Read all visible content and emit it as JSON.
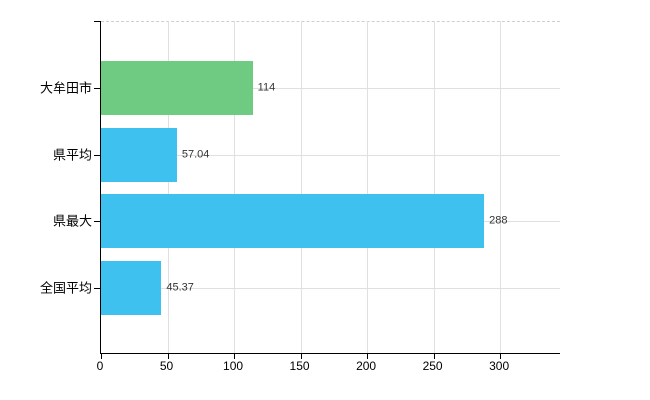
{
  "chart_data": {
    "type": "bar",
    "orientation": "horizontal",
    "title": "",
    "xlabel": "",
    "ylabel": "",
    "categories": [
      "大牟田市",
      "県平均",
      "県最大",
      "全国平均"
    ],
    "values": [
      114,
      57.04,
      288,
      45.37
    ],
    "value_labels": [
      "114",
      "57.04",
      "288",
      "45.37"
    ],
    "x_ticks": [
      0,
      50,
      100,
      150,
      200,
      250,
      300
    ],
    "x_tick_labels": [
      "0",
      "50",
      "100",
      "150",
      "200",
      "250",
      "300"
    ],
    "xlim": [
      0,
      345
    ],
    "grid": true,
    "legend": false,
    "bar_colors": [
      "#6ecb81",
      "#3fc1f0",
      "#3fc1f0",
      "#3fc1f0"
    ]
  },
  "colors": {
    "background": "#ffffff",
    "axis": "#000000",
    "grid": "#e0e0e0",
    "value_label": "#333333",
    "green_bar": "#6ecb81",
    "blue_bar": "#3fc1f0"
  }
}
